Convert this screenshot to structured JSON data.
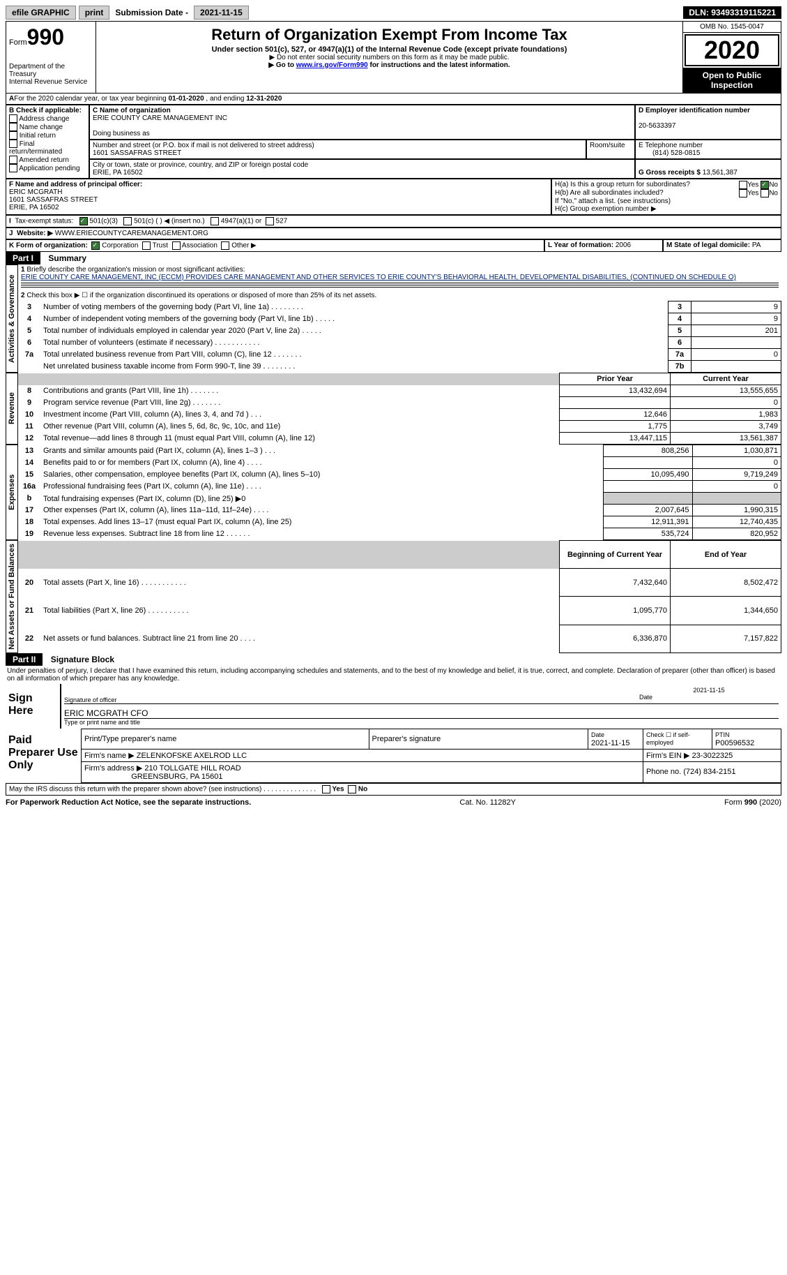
{
  "topbar": {
    "efile": "efile GRAPHIC",
    "print": "print",
    "sub_label": "Submission Date - ",
    "sub_date": "2021-11-15",
    "dln_label": "DLN: ",
    "dln": "93493319115221"
  },
  "header": {
    "form_word": "Form",
    "form_num": "990",
    "dept": "Department of the Treasury\nInternal Revenue Service",
    "title": "Return of Organization Exempt From Income Tax",
    "sub1": "Under section 501(c), 527, or 4947(a)(1) of the Internal Revenue Code (except private foundations)",
    "sub2": "▶ Do not enter social security numbers on this form as it may be made public.",
    "sub3_pre": "▶ Go to ",
    "sub3_link": "www.irs.gov/Form990",
    "sub3_post": " for instructions and the latest information.",
    "omb": "OMB No. 1545-0047",
    "year": "2020",
    "open": "Open to Public Inspection"
  },
  "period": {
    "text_a": "For the 2020 calendar year, or tax year beginning ",
    "begin": "01-01-2020",
    "text_b": " , and ending ",
    "end": "12-31-2020"
  },
  "boxB": {
    "label": "B Check if applicable:",
    "opts": [
      "Address change",
      "Name change",
      "Initial return",
      "Final return/terminated",
      "Amended return",
      "Application pending"
    ]
  },
  "boxC": {
    "name_label": "C Name of organization",
    "name": "ERIE COUNTY CARE MANAGEMENT INC",
    "dba_label": "Doing business as",
    "addr_label": "Number and street (or P.O. box if mail is not delivered to street address)",
    "room_label": "Room/suite",
    "addr": "1601 SASSAFRAS STREET",
    "city_label": "City or town, state or province, country, and ZIP or foreign postal code",
    "city": "ERIE, PA  16502"
  },
  "boxD": {
    "label": "D Employer identification number",
    "ein": "20-5633397"
  },
  "boxE": {
    "label": "E Telephone number",
    "phone": "(814) 528-0815"
  },
  "boxG": {
    "label": "G Gross receipts $ ",
    "val": "13,561,387"
  },
  "boxF": {
    "label": "F Name and address of principal officer:",
    "name": "ERIC MCGRATH",
    "addr1": "1601 SASSAFRAS STREET",
    "addr2": "ERIE, PA  16502"
  },
  "boxH": {
    "ha": "H(a)  Is this a group return for subordinates?",
    "hb": "H(b)  Are all subordinates included?",
    "hb_note": "If \"No,\" attach a list. (see instructions)",
    "hc": "H(c)  Group exemption number ▶",
    "yes": "Yes",
    "no": "No"
  },
  "boxI": {
    "label": "Tax-exempt status:",
    "o1": "501(c)(3)",
    "o2": "501(c) (  ) ◀ (insert no.)",
    "o3": "4947(a)(1) or",
    "o4": "527"
  },
  "boxJ": {
    "label": "Website: ▶",
    "val": "WWW.ERIECOUNTYCAREMANAGEMENT.ORG"
  },
  "boxK": {
    "label": "K Form of organization:",
    "o1": "Corporation",
    "o2": "Trust",
    "o3": "Association",
    "o4": "Other ▶"
  },
  "boxL": {
    "label": "L Year of formation: ",
    "val": "2006"
  },
  "boxM": {
    "label": "M State of legal domicile: ",
    "val": "PA"
  },
  "part1": {
    "label": "Part I",
    "title": "Summary",
    "vlabel_gov": "Activities & Governance",
    "vlabel_rev": "Revenue",
    "vlabel_exp": "Expenses",
    "vlabel_net": "Net Assets or Fund Balances",
    "l1": "Briefly describe the organization's mission or most significant activities:",
    "mission": "ERIE COUNTY CARE MANAGEMENT, INC (ECCM) PROVIDES CARE MANAGEMENT AND OTHER SERVICES TO ERIE COUNTY'S BEHAVIORAL HEALTH, DEVELOPMENTAL DISABILITIES, (CONTINUED ON SCHEDULE O)",
    "l2": "Check this box ▶ ☐ if the organization discontinued its operations or disposed of more than 25% of its net assets.",
    "rows_top": [
      {
        "n": "3",
        "desc": "Number of voting members of the governing body (Part VI, line 1a)   .    .    .    .    .    .    .    .",
        "box": "3",
        "val": "9"
      },
      {
        "n": "4",
        "desc": "Number of independent voting members of the governing body (Part VI, line 1b)   .    .    .    .    .",
        "box": "4",
        "val": "9"
      },
      {
        "n": "5",
        "desc": "Total number of individuals employed in calendar year 2020 (Part V, line 2a)   .    .    .    .    .",
        "box": "5",
        "val": "201"
      },
      {
        "n": "6",
        "desc": "Total number of volunteers (estimate if necessary)   .    .    .    .    .    .    .    .    .    .    .",
        "box": "6",
        "val": ""
      },
      {
        "n": "7a",
        "desc": "Total unrelated business revenue from Part VIII, column (C), line 12   .    .    .    .    .    .    .",
        "box": "7a",
        "val": "0"
      },
      {
        "n": "",
        "desc": "Net unrelated business taxable income from Form 990-T, line 39   .    .    .    .    .    .    .    .",
        "box": "7b",
        "val": ""
      }
    ],
    "hdr_prior": "Prior Year",
    "hdr_curr": "Current Year",
    "rows_rev": [
      {
        "n": "8",
        "desc": "Contributions and grants (Part VIII, line 1h)    .    .    .    .    .    .    .",
        "py": "13,432,694",
        "cy": "13,555,655"
      },
      {
        "n": "9",
        "desc": "Program service revenue (Part VIII, line 2g)    .    .    .    .    .    .    .",
        "py": "",
        "cy": "0"
      },
      {
        "n": "10",
        "desc": "Investment income (Part VIII, column (A), lines 3, 4, and 7d )    .    .    .",
        "py": "12,646",
        "cy": "1,983"
      },
      {
        "n": "11",
        "desc": "Other revenue (Part VIII, column (A), lines 5, 6d, 8c, 9c, 10c, and 11e)",
        "py": "1,775",
        "cy": "3,749"
      },
      {
        "n": "12",
        "desc": "Total revenue—add lines 8 through 11 (must equal Part VIII, column (A), line 12)",
        "py": "13,447,115",
        "cy": "13,561,387"
      }
    ],
    "rows_exp": [
      {
        "n": "13",
        "desc": "Grants and similar amounts paid (Part IX, column (A), lines 1–3 )    .    .    .",
        "py": "808,256",
        "cy": "1,030,871"
      },
      {
        "n": "14",
        "desc": "Benefits paid to or for members (Part IX, column (A), line 4)    .    .    .    .",
        "py": "",
        "cy": "0"
      },
      {
        "n": "15",
        "desc": "Salaries, other compensation, employee benefits (Part IX, column (A), lines 5–10)",
        "py": "10,095,490",
        "cy": "9,719,249"
      },
      {
        "n": "16a",
        "desc": "Professional fundraising fees (Part IX, column (A), line 11e)    .    .    .    .",
        "py": "",
        "cy": "0"
      },
      {
        "n": "b",
        "desc": "Total fundraising expenses (Part IX, column (D), line 25) ▶0",
        "py": "GRAY",
        "cy": "GRAY"
      },
      {
        "n": "17",
        "desc": "Other expenses (Part IX, column (A), lines 11a–11d, 11f–24e)    .    .    .    .",
        "py": "2,007,645",
        "cy": "1,990,315"
      },
      {
        "n": "18",
        "desc": "Total expenses. Add lines 13–17 (must equal Part IX, column (A), line 25)",
        "py": "12,911,391",
        "cy": "12,740,435"
      },
      {
        "n": "19",
        "desc": "Revenue less expenses. Subtract line 18 from line 12    .    .    .    .    .    .",
        "py": "535,724",
        "cy": "820,952"
      }
    ],
    "hdr_begin": "Beginning of Current Year",
    "hdr_end": "End of Year",
    "rows_net": [
      {
        "n": "20",
        "desc": "Total assets (Part X, line 16)    .    .    .    .    .    .    .    .    .    .    .",
        "py": "7,432,640",
        "cy": "8,502,472"
      },
      {
        "n": "21",
        "desc": "Total liabilities (Part X, line 26)    .    .    .    .    .    .    .    .    .    .",
        "py": "1,095,770",
        "cy": "1,344,650"
      },
      {
        "n": "22",
        "desc": "Net assets or fund balances. Subtract line 21 from line 20    .    .    .    .",
        "py": "6,336,870",
        "cy": "7,157,822"
      }
    ]
  },
  "part2": {
    "label": "Part II",
    "title": "Signature Block",
    "decl": "Under penalties of perjury, I declare that I have examined this return, including accompanying schedules and statements, and to the best of my knowledge and belief, it is true, correct, and complete. Declaration of preparer (other than officer) is based on all information of which preparer has any knowledge.",
    "sign_here": "Sign Here",
    "sig_label": "Signature of officer",
    "date_label": "Date",
    "sig_date": "2021-11-15",
    "officer": "ERIC MCGRATH CFO",
    "type_label": "Type or print name and title",
    "paid": "Paid Preparer Use Only",
    "prep_name_label": "Print/Type preparer's name",
    "prep_sig_label": "Preparer's signature",
    "prep_date_label": "Date",
    "prep_date": "2021-11-15",
    "check_if": "Check ☐ if self-employed",
    "ptin_label": "PTIN",
    "ptin": "P00596532",
    "firm_name_label": "Firm's name    ▶ ",
    "firm_name": "ZELENKOFSKE AXELROD LLC",
    "firm_ein_label": "Firm's EIN ▶ ",
    "firm_ein": "23-3022325",
    "firm_addr_label": "Firm's address ▶ ",
    "firm_addr": "210 TOLLGATE HILL ROAD",
    "firm_city": "GREENSBURG, PA  15601",
    "firm_phone_label": "Phone no. ",
    "firm_phone": "(724) 834-2151",
    "discuss": "May the IRS discuss this return with the preparer shown above? (see instructions)    .    .    .    .    .    .    .    .    .    .    .    .    .    .",
    "yes": "Yes",
    "no": "No"
  },
  "footer": {
    "left": "For Paperwork Reduction Act Notice, see the separate instructions.",
    "mid": "Cat. No. 11282Y",
    "right": "Form 990 (2020)"
  }
}
